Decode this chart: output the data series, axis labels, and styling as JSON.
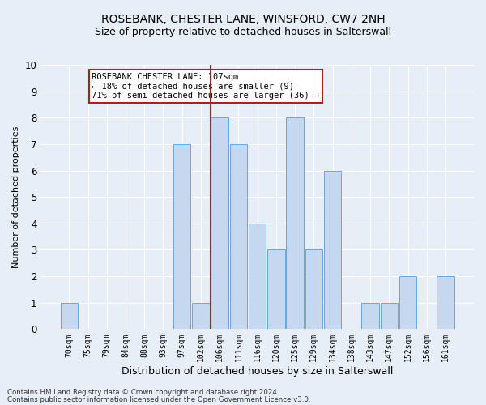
{
  "title": "ROSEBANK, CHESTER LANE, WINSFORD, CW7 2NH",
  "subtitle": "Size of property relative to detached houses in Salterswall",
  "xlabel": "Distribution of detached houses by size in Salterswall",
  "ylabel": "Number of detached properties",
  "categories": [
    "70sqm",
    "75sqm",
    "79sqm",
    "84sqm",
    "88sqm",
    "93sqm",
    "97sqm",
    "102sqm",
    "106sqm",
    "111sqm",
    "116sqm",
    "120sqm",
    "125sqm",
    "129sqm",
    "134sqm",
    "138sqm",
    "143sqm",
    "147sqm",
    "152sqm",
    "156sqm",
    "161sqm"
  ],
  "values": [
    1,
    0,
    0,
    0,
    0,
    0,
    7,
    1,
    8,
    7,
    4,
    3,
    8,
    3,
    6,
    0,
    1,
    1,
    2,
    0,
    2
  ],
  "bar_color": "#c5d8f0",
  "bar_edge_color": "#5b9bd5",
  "vline_idx": 8,
  "vline_color": "#a0281a",
  "annotation_text": "ROSEBANK CHESTER LANE: 107sqm\n← 18% of detached houses are smaller (9)\n71% of semi-detached houses are larger (36) →",
  "annotation_box_color": "white",
  "annotation_box_edge": "#a0281a",
  "ylim": [
    0,
    10
  ],
  "yticks": [
    0,
    1,
    2,
    3,
    4,
    5,
    6,
    7,
    8,
    9,
    10
  ],
  "footer1": "Contains HM Land Registry data © Crown copyright and database right 2024.",
  "footer2": "Contains public sector information licensed under the Open Government Licence v3.0.",
  "background_color": "#e8eef8",
  "grid_color": "#ffffff",
  "title_fontsize": 10,
  "subtitle_fontsize": 9,
  "tick_fontsize": 7,
  "ylabel_fontsize": 8,
  "xlabel_fontsize": 9
}
